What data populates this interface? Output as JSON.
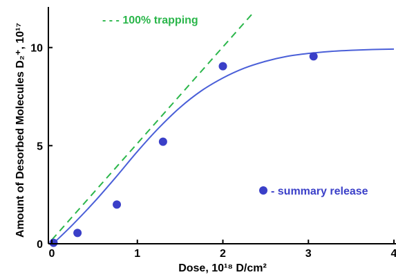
{
  "chart_data": {
    "type": "scatter",
    "xlabel": "Dose, 10¹⁸ D/cm²",
    "ylabel": "Amount of Desorbed Molecules D₂⁺, 10¹⁷",
    "xlim": [
      0,
      4
    ],
    "ylim": [
      0,
      12
    ],
    "x_ticks": [
      "0",
      "1",
      "2",
      "3",
      "4"
    ],
    "y_ticks": [
      "0",
      "5",
      "10"
    ],
    "x_tick_values": [
      0,
      1,
      2,
      3,
      4
    ],
    "y_tick_values": [
      0,
      5,
      10
    ],
    "grid": false,
    "series": [
      {
        "name": "summary release",
        "kind": "points",
        "color": "#3a3fc8",
        "x": [
          0.02,
          0.3,
          0.76,
          1.3,
          2.0,
          3.06
        ],
        "y": [
          0.05,
          0.55,
          2.0,
          5.2,
          9.05,
          9.55
        ]
      },
      {
        "name": "",
        "kind": "fit-curve",
        "color": "#4a5fd8",
        "x": [
          0.05,
          0.25,
          0.5,
          0.75,
          1.0,
          1.25,
          1.5,
          1.75,
          2.0,
          2.25,
          2.5,
          2.75,
          3.0,
          3.25,
          3.5,
          3.75,
          4.0
        ],
        "y": [
          0.15,
          1.0,
          2.15,
          3.4,
          4.7,
          5.9,
          6.95,
          7.8,
          8.45,
          8.95,
          9.3,
          9.55,
          9.7,
          9.8,
          9.86,
          9.9,
          9.92
        ]
      },
      {
        "name": "100% trapping",
        "kind": "dashed-line",
        "color": "#2ab64a",
        "x": [
          0.0,
          2.36
        ],
        "y": [
          0.2,
          11.8
        ]
      }
    ],
    "legend": [
      {
        "label": "- - - 100% trapping",
        "color": "#2ab64a",
        "placement": "top-left"
      },
      {
        "label": "- summary release",
        "color": "#3a3fc8",
        "placement": "bottom-right"
      }
    ]
  }
}
